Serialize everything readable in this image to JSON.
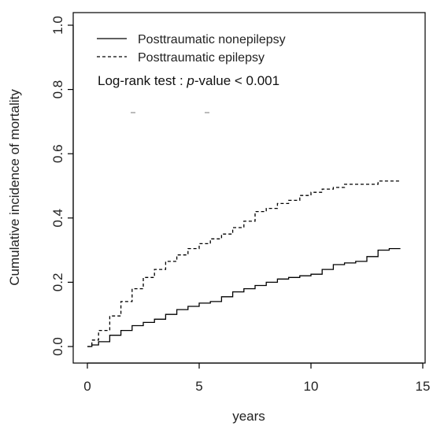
{
  "chart_data": {
    "type": "line",
    "title": "",
    "xlabel": "years",
    "ylabel": "Cumulative incidence of mortality",
    "xlim": [
      0,
      15
    ],
    "ylim": [
      0,
      1.0
    ],
    "x_ticks": [
      0,
      5,
      10,
      15
    ],
    "x_tick_labels": [
      "0",
      "5",
      "10",
      "15"
    ],
    "y_ticks": [
      0.0,
      0.2,
      0.4,
      0.6,
      0.8,
      1.0
    ],
    "y_tick_labels": [
      "0.0",
      "0.2",
      "0.4",
      "0.6",
      "0.8",
      "1.0"
    ],
    "grid": false,
    "legend_position": "top-left",
    "series": [
      {
        "name": "Posttraumatic nonepilepsy",
        "style": "solid",
        "color": "#000000",
        "points": [
          [
            0,
            0.0
          ],
          [
            0.2,
            0.005
          ],
          [
            0.5,
            0.015
          ],
          [
            1.0,
            0.035
          ],
          [
            1.5,
            0.05
          ],
          [
            2.0,
            0.065
          ],
          [
            2.5,
            0.075
          ],
          [
            3.0,
            0.085
          ],
          [
            3.5,
            0.1
          ],
          [
            4.0,
            0.115
          ],
          [
            4.5,
            0.125
          ],
          [
            5.0,
            0.135
          ],
          [
            5.5,
            0.14
          ],
          [
            6.0,
            0.155
          ],
          [
            6.5,
            0.17
          ],
          [
            7.0,
            0.18
          ],
          [
            7.5,
            0.19
          ],
          [
            8.0,
            0.2
          ],
          [
            8.5,
            0.21
          ],
          [
            9.0,
            0.215
          ],
          [
            9.5,
            0.22
          ],
          [
            10.0,
            0.225
          ],
          [
            10.5,
            0.24
          ],
          [
            11.0,
            0.255
          ],
          [
            11.5,
            0.26
          ],
          [
            12.0,
            0.265
          ],
          [
            12.5,
            0.28
          ],
          [
            13.0,
            0.3
          ],
          [
            13.5,
            0.305
          ],
          [
            14.0,
            0.305
          ]
        ]
      },
      {
        "name": "Posttraumatic epilepsy",
        "style": "dashed",
        "color": "#000000",
        "points": [
          [
            0,
            0.0
          ],
          [
            0.2,
            0.02
          ],
          [
            0.5,
            0.05
          ],
          [
            1.0,
            0.095
          ],
          [
            1.5,
            0.14
          ],
          [
            2.0,
            0.18
          ],
          [
            2.5,
            0.215
          ],
          [
            3.0,
            0.24
          ],
          [
            3.5,
            0.265
          ],
          [
            4.0,
            0.285
          ],
          [
            4.5,
            0.305
          ],
          [
            5.0,
            0.32
          ],
          [
            5.5,
            0.335
          ],
          [
            6.0,
            0.35
          ],
          [
            6.5,
            0.37
          ],
          [
            7.0,
            0.39
          ],
          [
            7.5,
            0.42
          ],
          [
            8.0,
            0.43
          ],
          [
            8.5,
            0.445
          ],
          [
            9.0,
            0.455
          ],
          [
            9.5,
            0.47
          ],
          [
            10.0,
            0.48
          ],
          [
            10.5,
            0.49
          ],
          [
            11.0,
            0.495
          ],
          [
            11.5,
            0.505
          ],
          [
            12.0,
            0.505
          ],
          [
            12.5,
            0.505
          ],
          [
            13.0,
            0.515
          ],
          [
            13.5,
            0.515
          ],
          [
            14.0,
            0.515
          ]
        ]
      }
    ],
    "annotations": [
      {
        "prefix": "Log-rank test : ",
        "italic": "p",
        "suffix": "-value < 0.001"
      }
    ]
  }
}
